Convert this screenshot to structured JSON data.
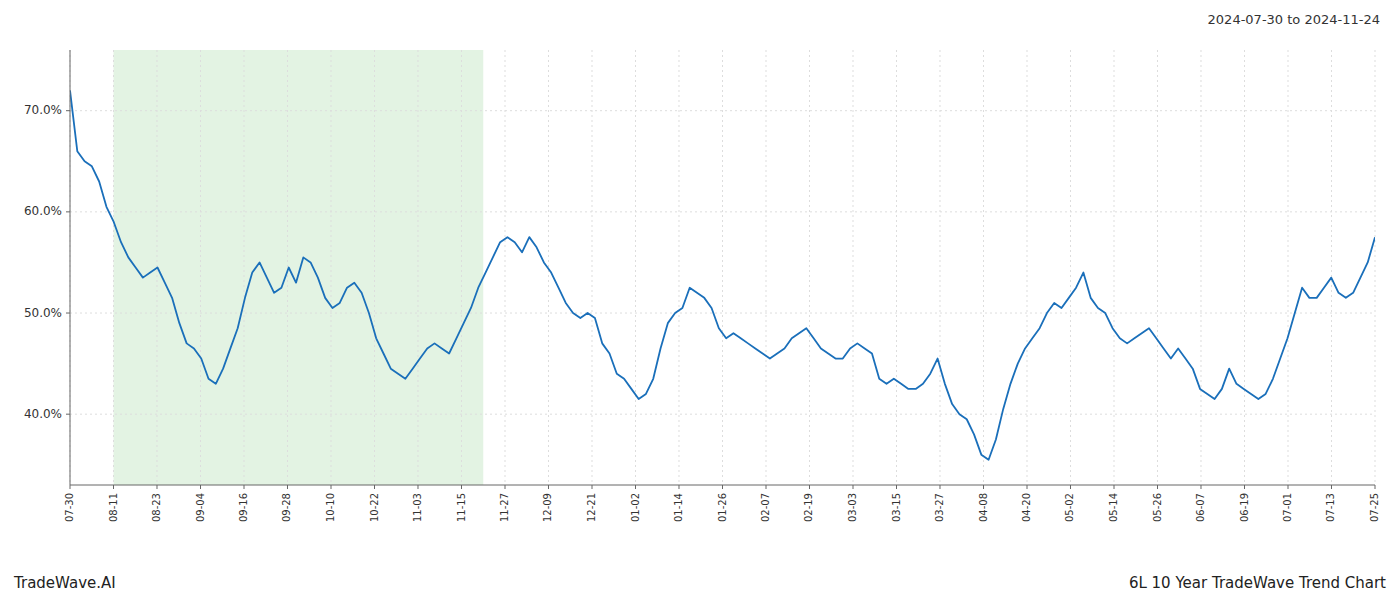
{
  "chart_data": {
    "type": "line",
    "title": "2024-07-30 to 2024-11-24",
    "annotations": [
      "TradeWave.AI",
      "6L 10 Year TradeWave Trend Chart"
    ],
    "color": "#1a6fba",
    "grid": true,
    "shaded_range": [
      5.9667,
      56.6833
    ],
    "shade_color": "#d4ecd4",
    "xlim": [
      0,
      179
    ],
    "xticks": [
      {
        "value": 0,
        "label": "07-30"
      },
      {
        "value": 5.9667,
        "label": "08-11"
      },
      {
        "value": 11.9333,
        "label": "08-23"
      },
      {
        "value": 17.9,
        "label": "09-04"
      },
      {
        "value": 23.8667,
        "label": "09-16"
      },
      {
        "value": 29.8333,
        "label": "09-28"
      },
      {
        "value": 35.8,
        "label": "10-10"
      },
      {
        "value": 41.7667,
        "label": "10-22"
      },
      {
        "value": 47.7333,
        "label": "11-03"
      },
      {
        "value": 53.7,
        "label": "11-15"
      },
      {
        "value": 59.6667,
        "label": "11-27"
      },
      {
        "value": 65.6333,
        "label": "12-09"
      },
      {
        "value": 71.6,
        "label": "12-21"
      },
      {
        "value": 77.5667,
        "label": "01-02"
      },
      {
        "value": 83.5333,
        "label": "01-14"
      },
      {
        "value": 89.5,
        "label": "01-26"
      },
      {
        "value": 95.4667,
        "label": "02-07"
      },
      {
        "value": 101.4333,
        "label": "02-19"
      },
      {
        "value": 107.4,
        "label": "03-03"
      },
      {
        "value": 113.3667,
        "label": "03-15"
      },
      {
        "value": 119.3333,
        "label": "03-27"
      },
      {
        "value": 125.3,
        "label": "04-08"
      },
      {
        "value": 131.2667,
        "label": "04-20"
      },
      {
        "value": 137.2333,
        "label": "05-02"
      },
      {
        "value": 143.2,
        "label": "05-14"
      },
      {
        "value": 149.1667,
        "label": "05-26"
      },
      {
        "value": 155.1333,
        "label": "06-07"
      },
      {
        "value": 161.1,
        "label": "06-19"
      },
      {
        "value": 167.0667,
        "label": "07-01"
      },
      {
        "value": 173.0333,
        "label": "07-13"
      },
      {
        "value": 179,
        "label": "07-25"
      }
    ],
    "ylim": [
      33,
      76
    ],
    "yticks": [
      {
        "value": 40.0,
        "label": "40.0%"
      },
      {
        "value": 50.0,
        "label": "50.0%"
      },
      {
        "value": 60.0,
        "label": "60.0%"
      },
      {
        "value": 70.0,
        "label": "70.0%"
      }
    ],
    "values": [
      72.0,
      66.0,
      65.0,
      64.5,
      63.0,
      60.5,
      59.0,
      57.0,
      55.5,
      54.5,
      53.5,
      54.0,
      54.5,
      53.0,
      51.5,
      49.0,
      47.0,
      46.5,
      45.5,
      43.5,
      43.0,
      44.5,
      46.5,
      48.5,
      51.5,
      54.0,
      55.0,
      53.5,
      52.0,
      52.5,
      54.5,
      53.0,
      55.5,
      55.0,
      53.5,
      51.5,
      50.5,
      51.0,
      52.5,
      53.0,
      52.0,
      50.0,
      47.5,
      46.0,
      44.5,
      44.0,
      43.5,
      44.5,
      45.5,
      46.5,
      47.0,
      46.5,
      46.0,
      47.5,
      49.0,
      50.5,
      52.5,
      54.0,
      55.5,
      57.0,
      57.5,
      57.0,
      56.0,
      57.5,
      56.5,
      55.0,
      54.0,
      52.5,
      51.0,
      50.0,
      49.5,
      50.0,
      49.5,
      47.0,
      46.0,
      44.0,
      43.5,
      42.5,
      41.5,
      42.0,
      43.5,
      46.5,
      49.0,
      50.0,
      50.5,
      52.5,
      52.0,
      51.5,
      50.5,
      48.5,
      47.5,
      48.0,
      47.5,
      47.0,
      46.5,
      46.0,
      45.5,
      46.0,
      46.5,
      47.5,
      48.0,
      48.5,
      47.5,
      46.5,
      46.0,
      45.5,
      45.5,
      46.5,
      47.0,
      46.5,
      46.0,
      43.5,
      43.0,
      43.5,
      43.0,
      42.5,
      42.5,
      43.0,
      44.0,
      45.5,
      43.0,
      41.0,
      40.0,
      39.5,
      38.0,
      36.0,
      35.5,
      37.5,
      40.5,
      43.0,
      45.0,
      46.5,
      47.5,
      48.5,
      50.0,
      51.0,
      50.5,
      51.5,
      52.5,
      54.0,
      51.5,
      50.5,
      50.0,
      48.5,
      47.5,
      47.0,
      47.5,
      48.0,
      48.5,
      47.5,
      46.5,
      45.5,
      46.5,
      45.5,
      44.5,
      42.5,
      42.0,
      41.5,
      42.5,
      44.5,
      43.0,
      42.5,
      42.0,
      41.5,
      42.0,
      43.5,
      45.5,
      47.5,
      50.0,
      52.5,
      51.5,
      51.5,
      52.5,
      53.5,
      52.0,
      51.5,
      52.0,
      53.5,
      55.0,
      57.5
    ]
  }
}
